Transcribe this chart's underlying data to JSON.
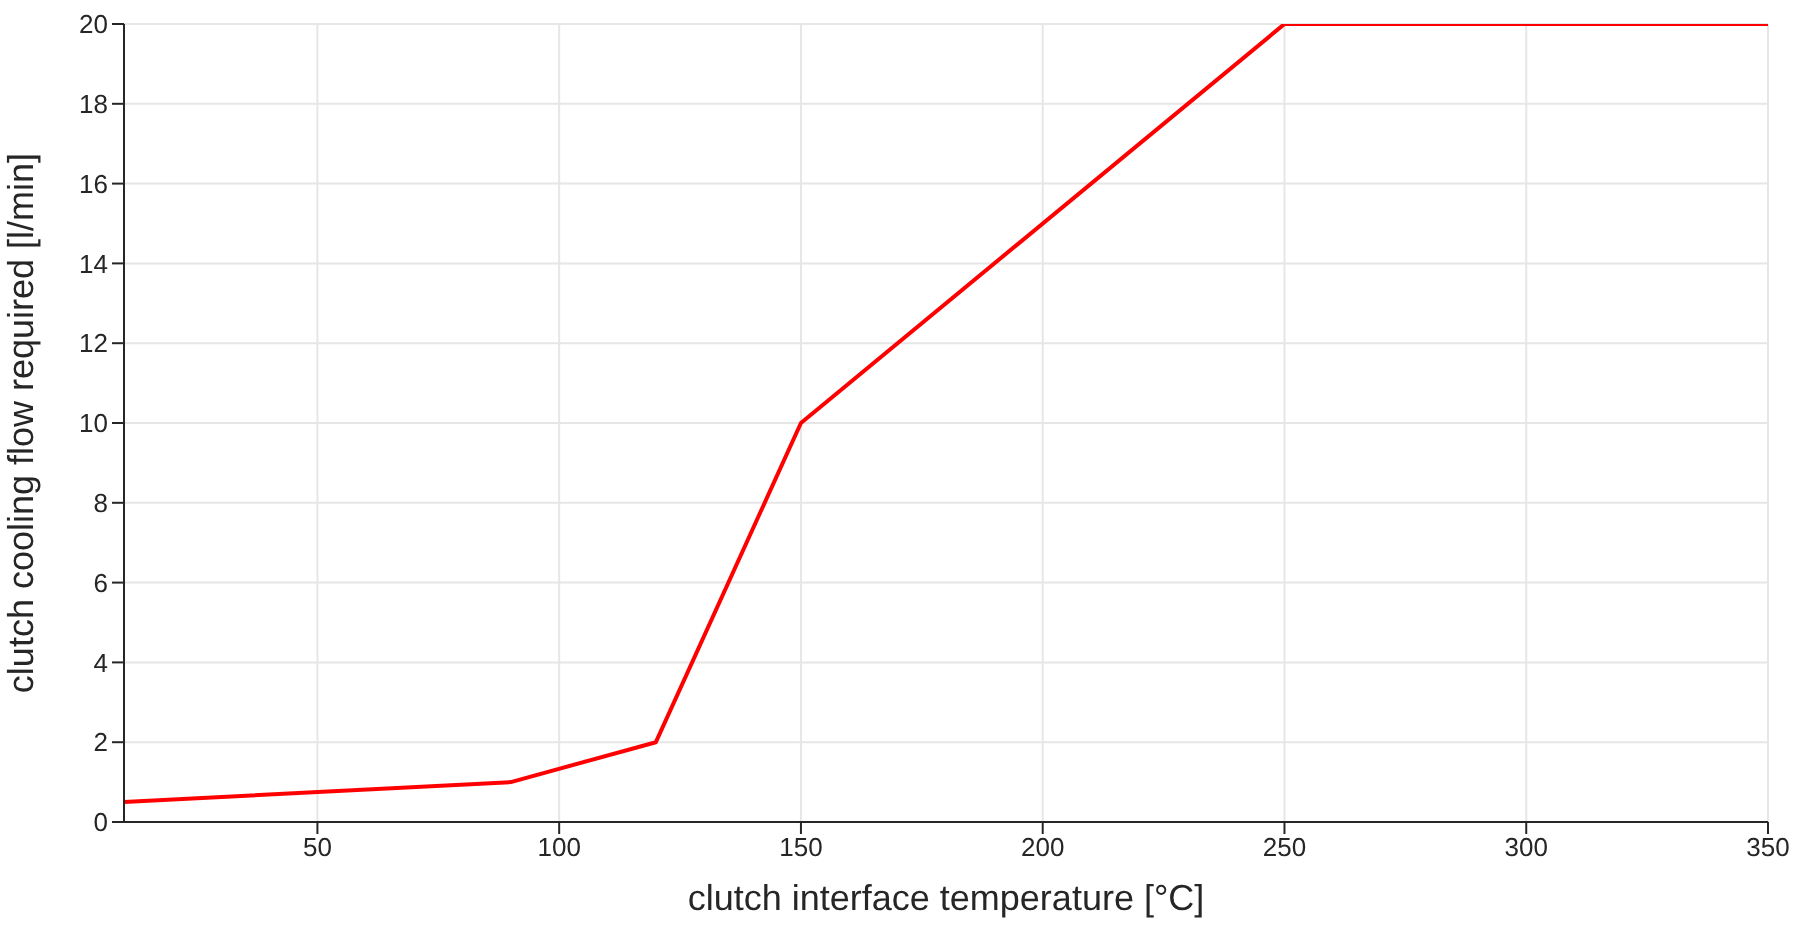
{
  "chart_data": {
    "type": "line",
    "xlabel": "clutch interface temperature [°C]",
    "ylabel": "clutch cooling flow required [l/min]",
    "x": [
      10,
      90,
      120,
      150,
      250,
      350
    ],
    "series": [
      {
        "color": "#ff0000",
        "values": [
          0.5,
          1,
          2,
          10,
          20,
          20
        ]
      }
    ],
    "xlim": [
      10,
      350
    ],
    "xticks": [
      50,
      100,
      150,
      200,
      250,
      300,
      350
    ],
    "ylim": [
      0,
      20
    ],
    "yticks": [
      0,
      2,
      4,
      6,
      8,
      10,
      12,
      14,
      16,
      18,
      20
    ],
    "grid": true,
    "marker": "none",
    "line_style": "solid"
  }
}
